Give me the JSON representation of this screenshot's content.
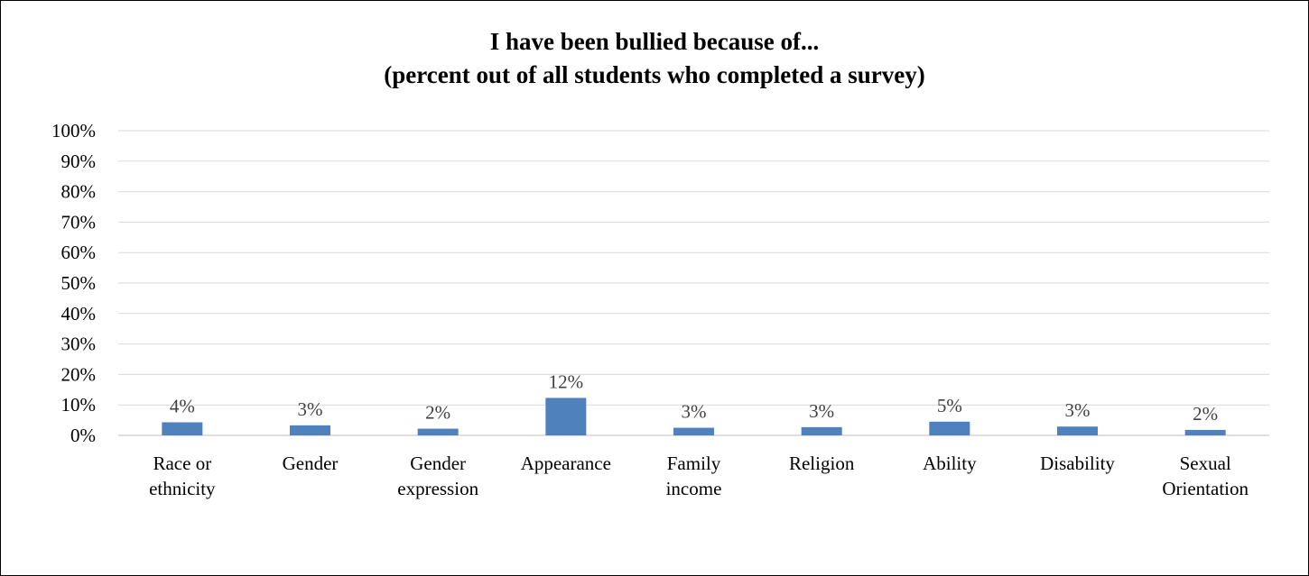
{
  "chart_data": {
    "type": "bar",
    "title_lines": [
      "I have been bullied because of...",
      "(percent out of all students who completed a survey)"
    ],
    "xlabel": "",
    "ylabel": "",
    "ylim": [
      0,
      100
    ],
    "y_ticks": [
      "0%",
      "10%",
      "20%",
      "30%",
      "40%",
      "50%",
      "60%",
      "70%",
      "80%",
      "90%",
      "100%"
    ],
    "grid": true,
    "legend": "none",
    "categories": [
      [
        "Race or",
        "ethnicity"
      ],
      [
        "Gender"
      ],
      [
        "Gender",
        "expression"
      ],
      [
        "Appearance"
      ],
      [
        "Family",
        "income"
      ],
      [
        "Religion"
      ],
      [
        "Ability"
      ],
      [
        "Disability"
      ],
      [
        "Sexual",
        "Orientation"
      ]
    ],
    "values": [
      4.3,
      3.3,
      2.2,
      12.3,
      2.5,
      2.7,
      4.5,
      2.9,
      1.8
    ],
    "data_labels": [
      "4%",
      "3%",
      "2%",
      "12%",
      "3%",
      "3%",
      "5%",
      "3%",
      "2%"
    ],
    "colors": {
      "bar": "#4f81bd",
      "grid": "#d9d9d9",
      "axis": "#bfbfbf",
      "data_label": "#404040"
    }
  }
}
